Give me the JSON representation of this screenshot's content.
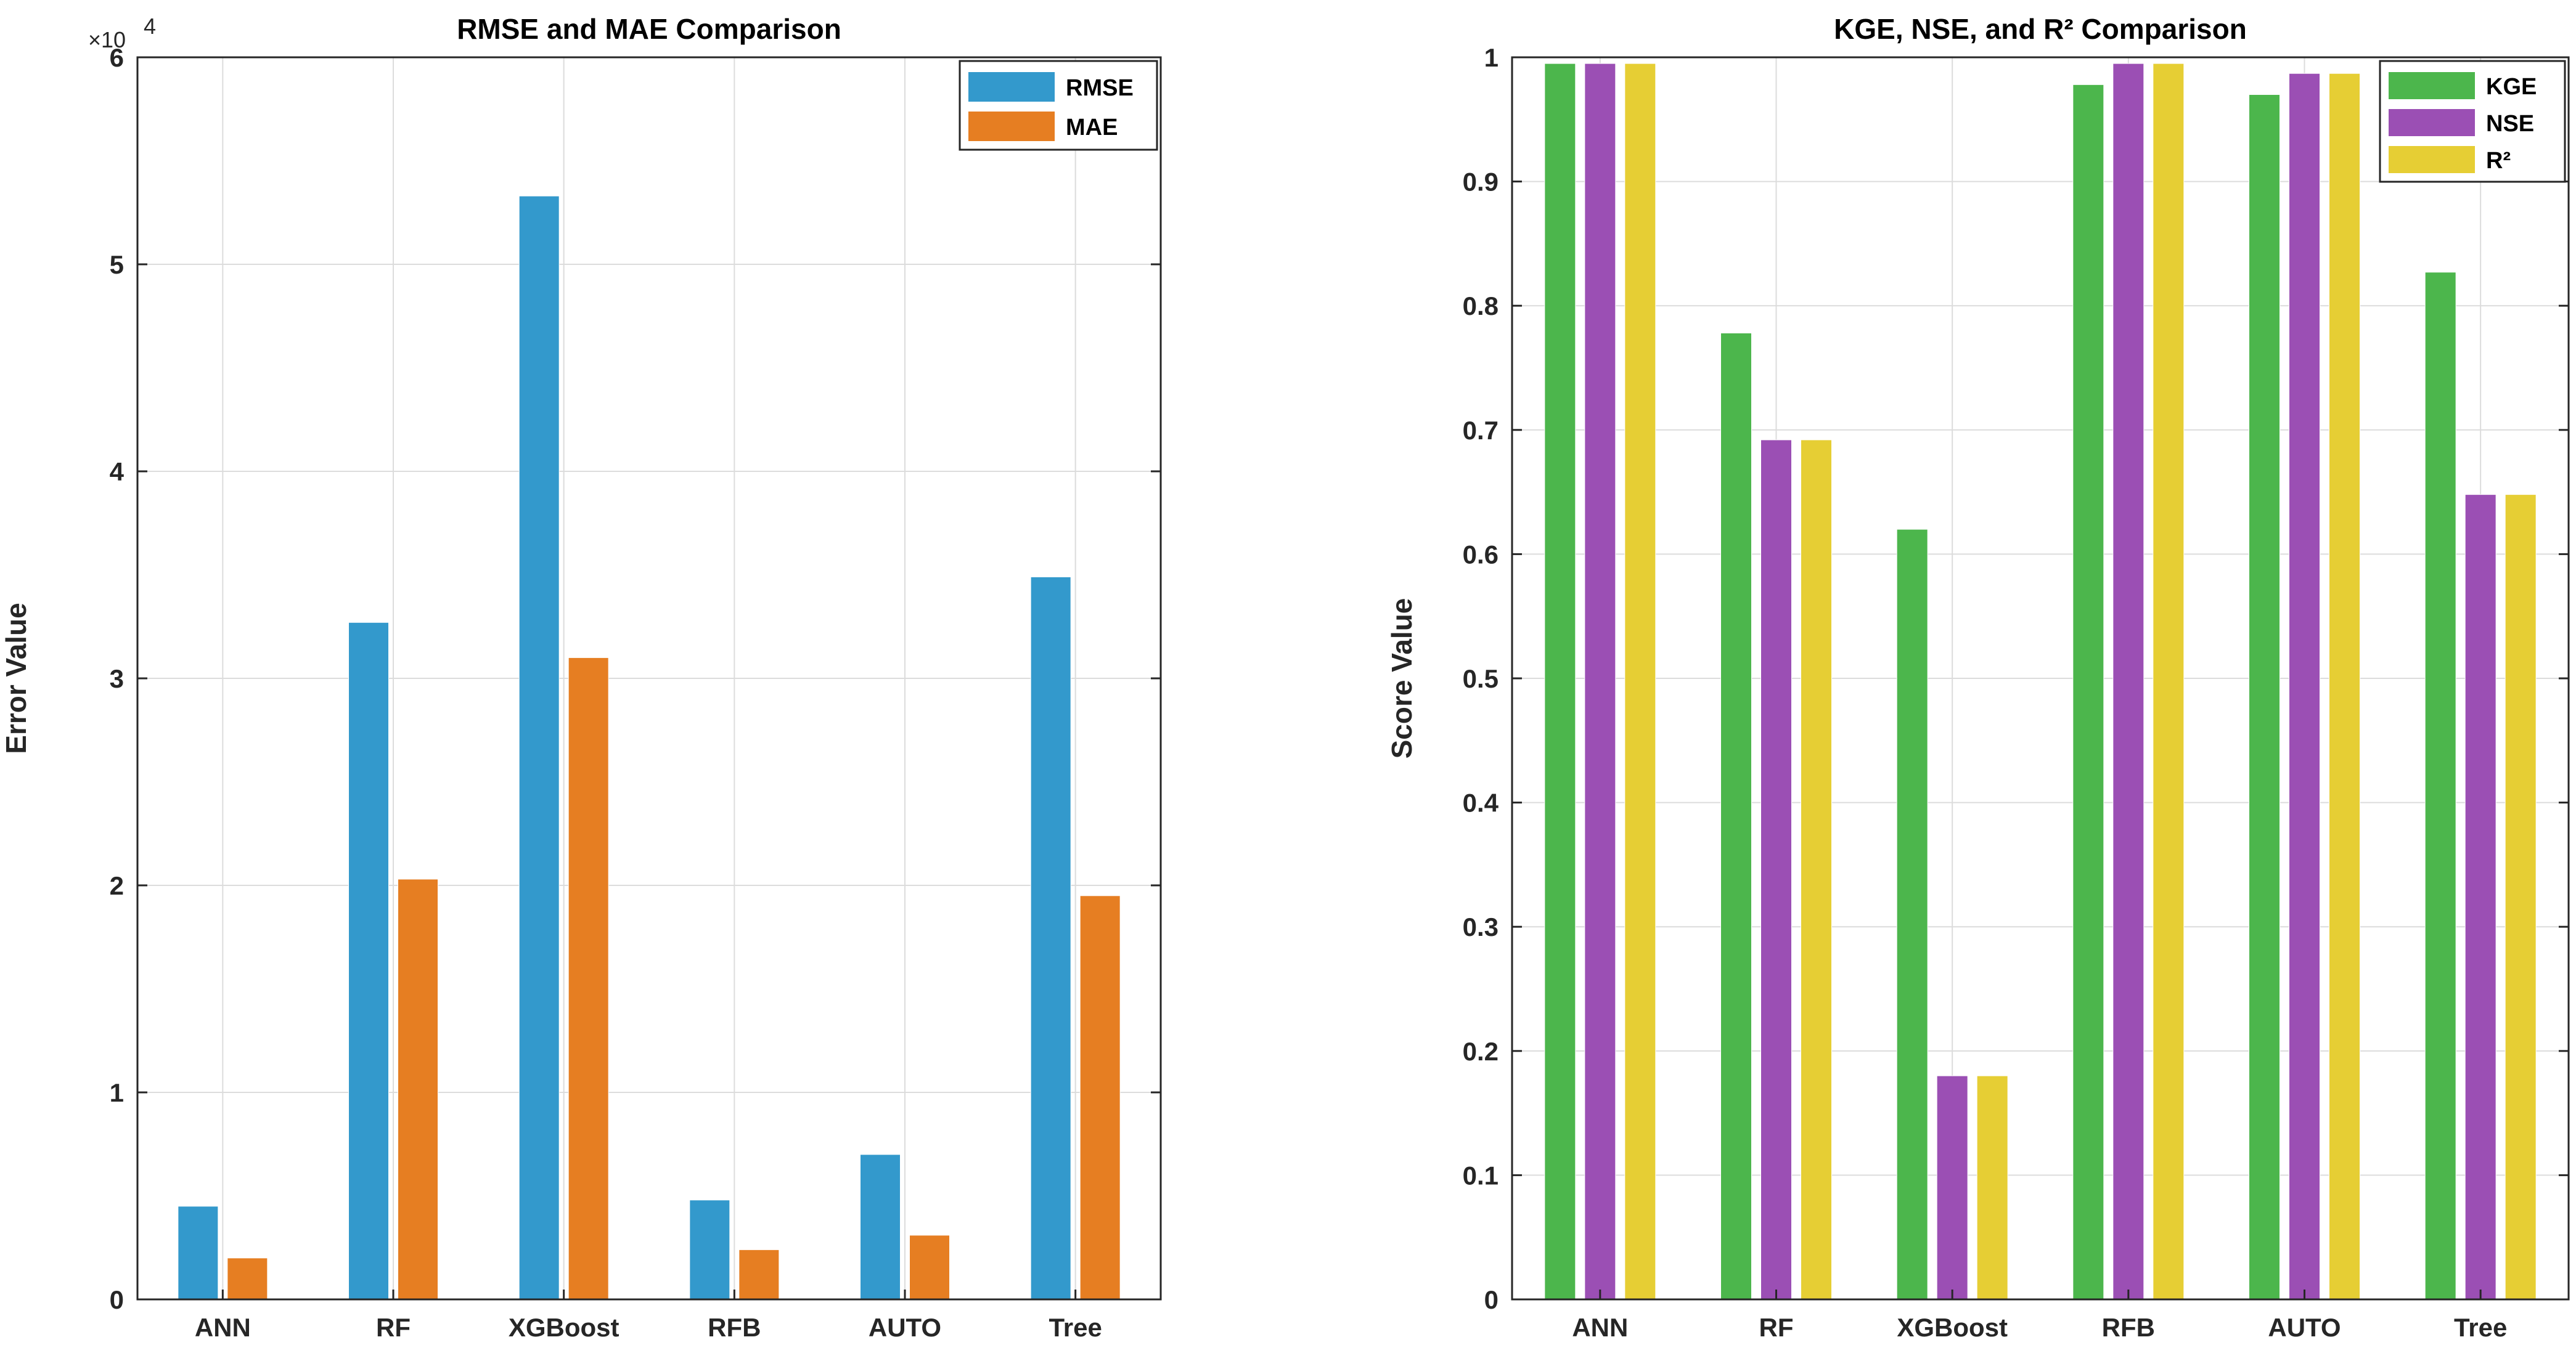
{
  "chart_data": [
    {
      "type": "bar",
      "title": "RMSE and MAE Comparison",
      "xlabel": "",
      "ylabel": "Error Value",
      "ylim": [
        0,
        60000
      ],
      "yticks": [
        0,
        10000,
        20000,
        30000,
        40000,
        50000,
        60000
      ],
      "ytick_labels": [
        "0",
        "1",
        "2",
        "3",
        "4",
        "5",
        "6"
      ],
      "y_multiplier": "×10",
      "y_multiplier_exp": "4",
      "grid": true,
      "legend_position": "top-right",
      "categories": [
        "ANN",
        "RF",
        "XGBoost",
        "RFB",
        "AUTO",
        "Tree"
      ],
      "series": [
        {
          "name": "RMSE",
          "color": "#3399CC",
          "values": [
            4500,
            32700,
            53300,
            4800,
            7000,
            34900
          ]
        },
        {
          "name": "MAE",
          "color": "#E67E22",
          "values": [
            2000,
            20300,
            31000,
            2400,
            3100,
            19500
          ]
        }
      ]
    },
    {
      "type": "bar",
      "title": "KGE, NSE, and R² Comparison",
      "xlabel": "",
      "ylabel": "Score Value",
      "ylim": [
        0,
        1
      ],
      "yticks": [
        0,
        0.1,
        0.2,
        0.3,
        0.4,
        0.5,
        0.6,
        0.7,
        0.8,
        0.9,
        1
      ],
      "ytick_labels": [
        "0",
        "0.1",
        "0.2",
        "0.3",
        "0.4",
        "0.5",
        "0.6",
        "0.7",
        "0.8",
        "0.9",
        "1"
      ],
      "grid": true,
      "legend_position": "top-right",
      "categories": [
        "ANN",
        "RF",
        "XGBoost",
        "RFB",
        "AUTO",
        "Tree"
      ],
      "series": [
        {
          "name": "KGE",
          "color": "#4CB64C",
          "values": [
            0.995,
            0.778,
            0.62,
            0.978,
            0.97,
            0.827
          ]
        },
        {
          "name": "NSE",
          "color": "#9B4FB4",
          "values": [
            0.995,
            0.692,
            0.18,
            0.995,
            0.987,
            0.648
          ]
        },
        {
          "name": "R²",
          "color": "#E6CE34",
          "values": [
            0.995,
            0.692,
            0.18,
            0.995,
            0.987,
            0.648
          ]
        }
      ]
    }
  ]
}
